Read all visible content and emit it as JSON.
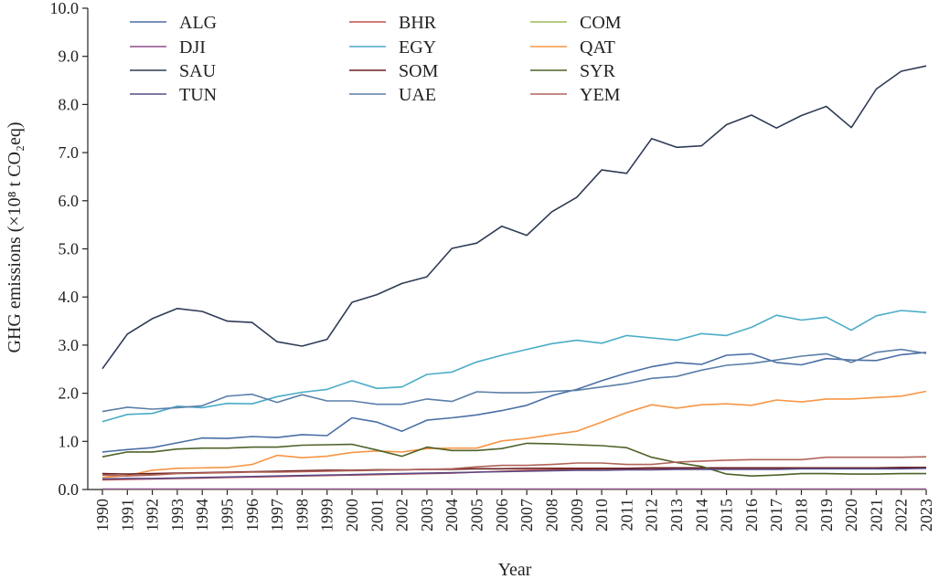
{
  "chart_data": {
    "type": "line",
    "xlabel": "Year",
    "ylabel": "GHG emissions (×10⁸ t CO₂eq)",
    "ylim": [
      0,
      10
    ],
    "yticks": [
      "0.0",
      "1.0",
      "2.0",
      "3.0",
      "4.0",
      "5.0",
      "6.0",
      "7.0",
      "8.0",
      "9.0",
      "10.0"
    ],
    "x": [
      "1990",
      "1991",
      "1992",
      "1993",
      "1994",
      "1995",
      "1996",
      "1997",
      "1998",
      "1999",
      "2000",
      "2001",
      "2002",
      "2003",
      "2004",
      "2005",
      "2006",
      "2007",
      "2008",
      "2009",
      "2010",
      "2011",
      "2012",
      "2013",
      "2014",
      "2015",
      "2016",
      "2017",
      "2018",
      "2019",
      "2020",
      "2021",
      "2022",
      "2023"
    ],
    "grid": false,
    "legend_position": "top",
    "series": [
      {
        "name": "ALG",
        "color": "#4a6fa5",
        "values": [
          0.78,
          0.83,
          0.87,
          0.97,
          1.07,
          1.06,
          1.1,
          1.08,
          1.14,
          1.12,
          1.49,
          1.4,
          1.21,
          1.44,
          1.49,
          1.55,
          1.64,
          1.75,
          1.95,
          2.08,
          2.26,
          2.42,
          2.55,
          2.64,
          2.6,
          2.79,
          2.82,
          2.64,
          2.59,
          2.72,
          2.69,
          2.68,
          2.8,
          2.85
        ]
      },
      {
        "name": "BHR",
        "color": "#c0504d",
        "values": [
          0.2,
          0.21,
          0.22,
          0.23,
          0.24,
          0.25,
          0.26,
          0.27,
          0.28,
          0.29,
          0.3,
          0.31,
          0.32,
          0.33,
          0.34,
          0.36,
          0.38,
          0.4,
          0.41,
          0.42,
          0.43,
          0.43,
          0.44,
          0.44,
          0.45,
          0.45,
          0.45,
          0.45,
          0.45,
          0.44,
          0.44,
          0.44,
          0.45,
          0.46
        ]
      },
      {
        "name": "COM",
        "color": "#9bbb59",
        "values": [
          0.003,
          0.003,
          0.003,
          0.003,
          0.003,
          0.003,
          0.003,
          0.003,
          0.003,
          0.003,
          0.003,
          0.003,
          0.003,
          0.003,
          0.003,
          0.003,
          0.003,
          0.003,
          0.003,
          0.003,
          0.003,
          0.003,
          0.003,
          0.003,
          0.003,
          0.003,
          0.003,
          0.003,
          0.003,
          0.003,
          0.003,
          0.003,
          0.003,
          0.003
        ]
      },
      {
        "name": "DJI",
        "color": "#8e4f8e",
        "values": [
          0.01,
          0.01,
          0.01,
          0.01,
          0.01,
          0.01,
          0.01,
          0.01,
          0.01,
          0.01,
          0.01,
          0.01,
          0.01,
          0.01,
          0.01,
          0.01,
          0.01,
          0.01,
          0.01,
          0.01,
          0.01,
          0.01,
          0.01,
          0.01,
          0.01,
          0.01,
          0.01,
          0.01,
          0.01,
          0.01,
          0.01,
          0.01,
          0.01,
          0.01
        ]
      },
      {
        "name": "EGY",
        "color": "#4bacc6",
        "values": [
          1.41,
          1.56,
          1.58,
          1.73,
          1.7,
          1.79,
          1.78,
          1.93,
          2.02,
          2.08,
          2.26,
          2.1,
          2.13,
          2.39,
          2.44,
          2.65,
          2.79,
          2.91,
          3.03,
          3.1,
          3.04,
          3.2,
          3.15,
          3.1,
          3.24,
          3.2,
          3.37,
          3.62,
          3.52,
          3.58,
          3.31,
          3.61,
          3.72,
          3.68
        ]
      },
      {
        "name": "QAT",
        "color": "#f79646",
        "values": [
          0.25,
          0.29,
          0.4,
          0.44,
          0.45,
          0.46,
          0.52,
          0.71,
          0.66,
          0.69,
          0.77,
          0.8,
          0.78,
          0.85,
          0.86,
          0.86,
          1.01,
          1.06,
          1.14,
          1.21,
          1.4,
          1.6,
          1.76,
          1.69,
          1.76,
          1.78,
          1.75,
          1.86,
          1.82,
          1.88,
          1.88,
          1.91,
          1.94,
          2.04
        ]
      },
      {
        "name": "SAU",
        "color": "#2e3b55",
        "values": [
          2.51,
          3.23,
          3.55,
          3.76,
          3.7,
          3.5,
          3.47,
          3.07,
          2.98,
          3.12,
          3.89,
          4.05,
          4.28,
          4.42,
          5.01,
          5.12,
          5.47,
          5.28,
          5.77,
          6.07,
          6.64,
          6.57,
          7.29,
          7.11,
          7.14,
          7.58,
          7.78,
          7.51,
          7.77,
          7.96,
          7.52,
          8.32,
          8.69,
          8.8
        ]
      },
      {
        "name": "SOM",
        "color": "#6b1f1f",
        "values": [
          0.33,
          0.32,
          0.33,
          0.34,
          0.35,
          0.36,
          0.37,
          0.38,
          0.39,
          0.4,
          0.4,
          0.41,
          0.41,
          0.42,
          0.42,
          0.43,
          0.43,
          0.44,
          0.44,
          0.44,
          0.44,
          0.44,
          0.45,
          0.45,
          0.45,
          0.45,
          0.45,
          0.45,
          0.45,
          0.45,
          0.45,
          0.45,
          0.46,
          0.46
        ]
      },
      {
        "name": "SYR",
        "color": "#4f6228",
        "values": [
          0.68,
          0.78,
          0.78,
          0.84,
          0.86,
          0.86,
          0.88,
          0.88,
          0.92,
          0.93,
          0.94,
          0.82,
          0.69,
          0.88,
          0.81,
          0.81,
          0.85,
          0.96,
          0.95,
          0.93,
          0.91,
          0.87,
          0.67,
          0.56,
          0.48,
          0.32,
          0.28,
          0.3,
          0.33,
          0.33,
          0.32,
          0.32,
          0.33,
          0.33
        ]
      },
      {
        "name": "TUN",
        "color": "#5a4a86",
        "values": [
          0.22,
          0.23,
          0.23,
          0.24,
          0.25,
          0.26,
          0.27,
          0.28,
          0.29,
          0.3,
          0.31,
          0.32,
          0.33,
          0.34,
          0.35,
          0.36,
          0.37,
          0.38,
          0.39,
          0.4,
          0.4,
          0.41,
          0.41,
          0.42,
          0.42,
          0.42,
          0.42,
          0.42,
          0.43,
          0.43,
          0.43,
          0.43,
          0.43,
          0.44
        ]
      },
      {
        "name": "UAE",
        "color": "#5b7fa8",
        "values": [
          1.62,
          1.71,
          1.67,
          1.7,
          1.74,
          1.94,
          1.98,
          1.81,
          1.97,
          1.84,
          1.84,
          1.77,
          1.77,
          1.88,
          1.83,
          2.03,
          2.01,
          2.01,
          2.04,
          2.06,
          2.13,
          2.2,
          2.31,
          2.35,
          2.48,
          2.58,
          2.62,
          2.69,
          2.77,
          2.82,
          2.64,
          2.85,
          2.91,
          2.83
        ]
      },
      {
        "name": "YEM",
        "color": "#b0645a",
        "values": [
          0.3,
          0.28,
          0.3,
          0.33,
          0.34,
          0.35,
          0.36,
          0.36,
          0.37,
          0.38,
          0.39,
          0.4,
          0.41,
          0.42,
          0.43,
          0.47,
          0.5,
          0.5,
          0.52,
          0.55,
          0.55,
          0.52,
          0.52,
          0.57,
          0.59,
          0.61,
          0.62,
          0.62,
          0.62,
          0.67,
          0.67,
          0.67,
          0.67,
          0.68
        ]
      }
    ]
  }
}
